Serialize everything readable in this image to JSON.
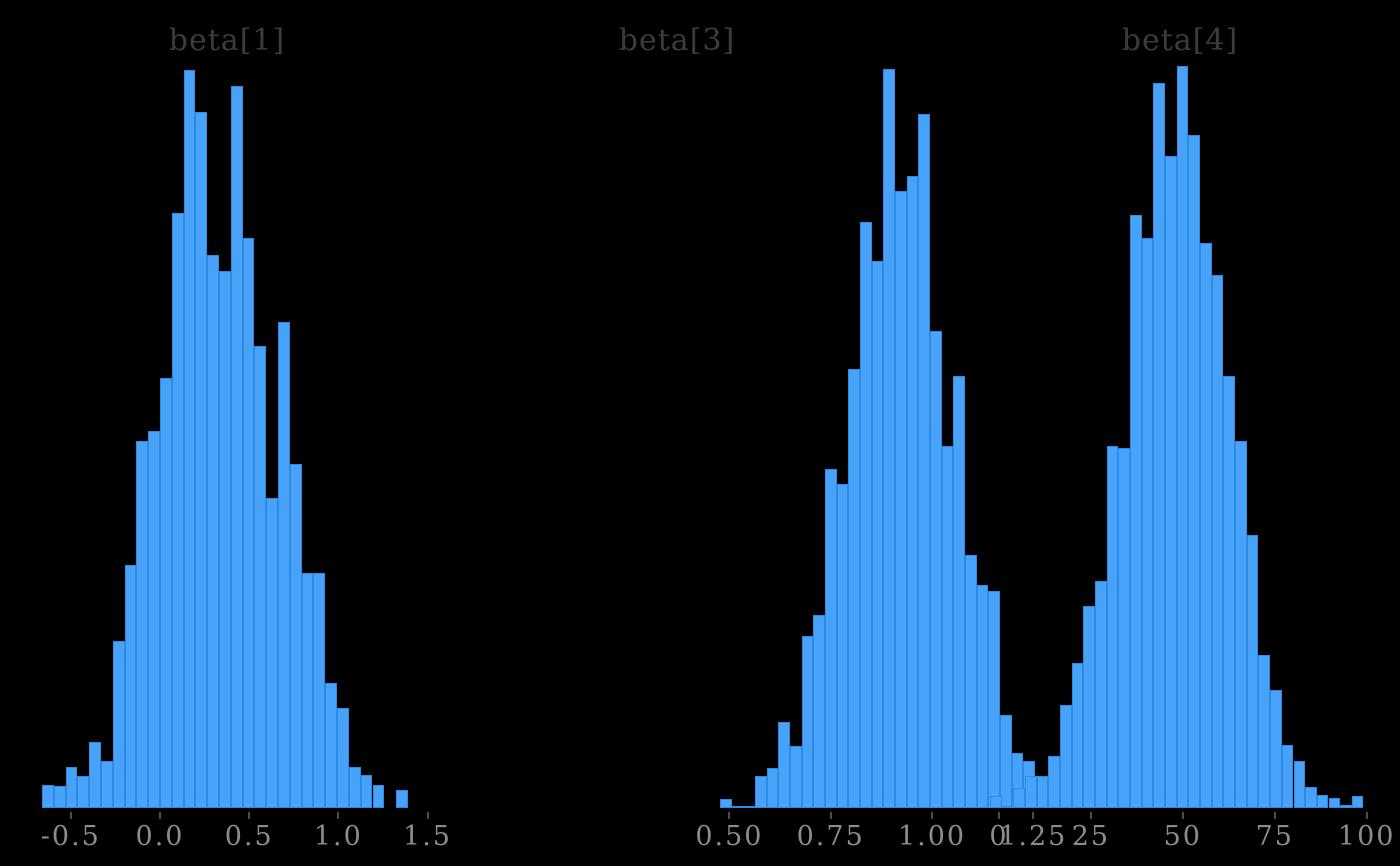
{
  "page": {
    "background": "#000000",
    "description": "Three posterior distribution histograms (MCMC draws) on black background"
  },
  "style": {
    "bar_fill": "#48a2f8",
    "bar_stroke": "#2a8be8",
    "title_color": "#3c3c3c",
    "tick_label_color": "#8c8c8c",
    "tick_mark_color": "#4d4d4d"
  },
  "chart_data": [
    {
      "type": "bar",
      "subtype": "histogram",
      "title": "beta[1]",
      "xlabel": "",
      "ylabel": "",
      "y_axis_shown": false,
      "grid": false,
      "x_start": -0.662,
      "bin_width": 0.0662,
      "heights_rel": [
        23,
        22,
        41,
        32,
        66,
        47,
        167,
        243,
        367,
        377,
        430,
        595,
        738,
        696,
        553,
        537,
        722,
        570,
        462,
        310,
        486,
        344,
        235,
        235,
        125,
        100,
        41,
        33,
        23,
        0,
        18
      ],
      "x_ticks": [
        {
          "value": -0.5,
          "label": "-0.5"
        },
        {
          "value": 0.0,
          "label": "0.0"
        },
        {
          "value": 0.5,
          "label": "0.5"
        },
        {
          "value": 1.0,
          "label": "1.0"
        },
        {
          "value": 1.5,
          "label": "1.5"
        }
      ]
    },
    {
      "type": "bar",
      "subtype": "histogram",
      "title": "beta[3]",
      "xlabel": "",
      "ylabel": "",
      "y_axis_shown": false,
      "grid": false,
      "x_start": 0.4768,
      "bin_width": 0.0288,
      "heights_rel": [
        9,
        2,
        2,
        32,
        40,
        86,
        62,
        172,
        193,
        339,
        324,
        439,
        586,
        547,
        739,
        617,
        632,
        694,
        477,
        362,
        432,
        253,
        223,
        217,
        93,
        55,
        47,
        30,
        9,
        9,
        9,
        9
      ],
      "x_ticks": [
        {
          "value": 0.5,
          "label": "0.50"
        },
        {
          "value": 0.75,
          "label": "0.75"
        },
        {
          "value": 1.0,
          "label": "1.00"
        },
        {
          "value": 1.25,
          "label": "1.25"
        }
      ]
    },
    {
      "type": "bar",
      "subtype": "histogram",
      "title": "beta[4]",
      "xlabel": "",
      "ylabel": "",
      "y_axis_shown": false,
      "grid": false,
      "x_start": -2.449,
      "bin_width": 3.1742,
      "heights_rel": [
        12,
        2,
        20,
        32,
        32,
        52,
        103,
        145,
        202,
        227,
        362,
        360,
        593,
        570,
        725,
        652,
        742,
        673,
        565,
        533,
        432,
        367,
        273,
        153,
        118,
        63,
        47,
        21,
        13,
        10,
        3,
        12
      ],
      "x_ticks": [
        {
          "value": 0,
          "label": "0"
        },
        {
          "value": 25,
          "label": "25"
        },
        {
          "value": 50,
          "label": "50"
        },
        {
          "value": 75,
          "label": "75"
        },
        {
          "value": 100,
          "label": "100"
        }
      ]
    }
  ]
}
